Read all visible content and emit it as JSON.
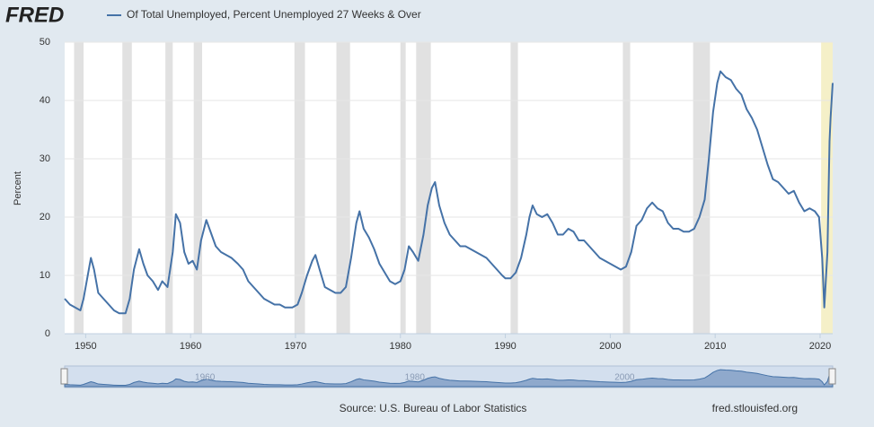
{
  "chart_data": {
    "type": "line",
    "logo": "FRED",
    "ylabel": "Percent",
    "source": "Source: U.S. Bureau of Labor Statistics",
    "credit": "fred.stlouisfed.org",
    "xlim": [
      1948,
      2021.2
    ],
    "ylim": [
      0,
      50
    ],
    "xticks": [
      1950,
      1960,
      1970,
      1980,
      1990,
      2000,
      2010,
      2020
    ],
    "yticks": [
      0,
      10,
      20,
      30,
      40,
      50
    ],
    "navigator_xticks": [
      1960,
      1980,
      2000
    ],
    "grid": true,
    "recessions": [
      {
        "start": 1948.9,
        "end": 1949.8,
        "color": "#e1e1e1"
      },
      {
        "start": 1953.5,
        "end": 1954.4,
        "color": "#e1e1e1"
      },
      {
        "start": 1957.6,
        "end": 1958.3,
        "color": "#e1e1e1"
      },
      {
        "start": 1960.3,
        "end": 1961.1,
        "color": "#e1e1e1"
      },
      {
        "start": 1969.9,
        "end": 1970.9,
        "color": "#e1e1e1"
      },
      {
        "start": 1973.9,
        "end": 1975.2,
        "color": "#e1e1e1"
      },
      {
        "start": 1980.0,
        "end": 1980.5,
        "color": "#e1e1e1"
      },
      {
        "start": 1981.5,
        "end": 1982.9,
        "color": "#e1e1e1"
      },
      {
        "start": 1990.5,
        "end": 1991.2,
        "color": "#e1e1e1"
      },
      {
        "start": 2001.2,
        "end": 2001.9,
        "color": "#e1e1e1"
      },
      {
        "start": 2007.9,
        "end": 2009.5,
        "color": "#e1e1e1"
      },
      {
        "start": 2020.1,
        "end": 2021.2,
        "color": "#f5f0c8"
      }
    ],
    "x": [
      1948.0,
      1948.5,
      1949.0,
      1949.5,
      1949.8,
      1950.3,
      1950.5,
      1950.8,
      1951.2,
      1951.7,
      1952.2,
      1952.7,
      1953.2,
      1953.8,
      1954.2,
      1954.6,
      1955.1,
      1955.5,
      1955.9,
      1956.4,
      1956.9,
      1957.3,
      1957.8,
      1958.3,
      1958.6,
      1959.0,
      1959.4,
      1959.8,
      1960.2,
      1960.6,
      1961.0,
      1961.5,
      1961.9,
      1962.4,
      1962.9,
      1963.4,
      1963.9,
      1964.5,
      1965.0,
      1965.5,
      1966.0,
      1966.5,
      1967.0,
      1967.5,
      1968.0,
      1968.5,
      1969.0,
      1969.7,
      1970.2,
      1970.6,
      1971.1,
      1971.6,
      1971.9,
      1972.3,
      1972.8,
      1973.3,
      1973.8,
      1974.3,
      1974.8,
      1975.3,
      1975.8,
      1976.1,
      1976.5,
      1977.0,
      1977.5,
      1978.0,
      1978.5,
      1979.0,
      1979.5,
      1980.0,
      1980.4,
      1980.8,
      1981.2,
      1981.7,
      1982.2,
      1982.6,
      1983.0,
      1983.3,
      1983.7,
      1984.2,
      1984.7,
      1985.2,
      1985.7,
      1986.2,
      1986.7,
      1987.2,
      1987.7,
      1988.2,
      1988.7,
      1989.2,
      1989.7,
      1990.0,
      1990.5,
      1991.0,
      1991.5,
      1992.0,
      1992.3,
      1992.6,
      1993.0,
      1993.5,
      1994.0,
      1994.5,
      1995.0,
      1995.5,
      1996.0,
      1996.5,
      1997.0,
      1997.5,
      1998.0,
      1998.5,
      1999.0,
      1999.5,
      2000.0,
      2000.5,
      2001.0,
      2001.5,
      2002.0,
      2002.5,
      2003.0,
      2003.5,
      2004.0,
      2004.5,
      2005.0,
      2005.5,
      2006.0,
      2006.5,
      2007.0,
      2007.5,
      2008.0,
      2008.5,
      2009.0,
      2009.4,
      2009.8,
      2010.2,
      2010.5,
      2011.0,
      2011.5,
      2012.0,
      2012.5,
      2013.0,
      2013.5,
      2014.0,
      2014.5,
      2015.0,
      2015.5,
      2016.0,
      2016.5,
      2017.0,
      2017.5,
      2018.0,
      2018.5,
      2019.0,
      2019.5,
      2019.9,
      2020.2,
      2020.4,
      2020.7,
      2020.9,
      2021.0,
      2021.2
    ],
    "series": [
      {
        "name": "Of Total Unemployed, Percent Unemployed 27 Weeks & Over",
        "color": "#4572a7",
        "values": [
          6,
          5,
          4.5,
          4,
          6,
          11,
          13,
          11,
          7,
          6,
          5,
          4,
          3.5,
          3.5,
          6,
          11,
          14.5,
          12,
          10,
          9,
          7.5,
          9,
          8,
          14,
          20.5,
          19,
          14,
          12,
          12.5,
          11,
          16,
          19.5,
          17.5,
          15,
          14,
          13.5,
          13,
          12,
          11,
          9,
          8,
          7,
          6,
          5.5,
          5,
          5,
          4.5,
          4.5,
          5,
          7,
          10,
          12.5,
          13.5,
          11,
          8,
          7.5,
          7,
          7,
          8,
          13,
          19,
          21,
          18,
          16.5,
          14.5,
          12,
          10.5,
          9,
          8.5,
          9,
          11,
          15,
          14,
          12.5,
          17,
          22,
          25,
          26,
          22,
          19,
          17,
          16,
          15,
          15,
          14.5,
          14,
          13.5,
          13,
          12,
          11,
          10,
          9.5,
          9.5,
          10.5,
          13,
          17,
          20,
          22,
          20.5,
          20,
          20.5,
          19,
          17,
          17,
          18,
          17.5,
          16,
          16,
          15,
          14,
          13,
          12.5,
          12,
          11.5,
          11,
          11.5,
          14,
          18.5,
          19.5,
          21.5,
          22.5,
          21.5,
          21,
          19,
          18,
          18,
          17.5,
          17.5,
          18,
          20,
          23,
          30,
          38,
          43,
          45,
          44,
          43.5,
          42,
          41,
          38.5,
          37,
          35,
          32,
          29,
          26.5,
          26,
          25,
          24,
          24.5,
          22.5,
          21,
          21.5,
          21,
          20,
          13,
          4.5,
          14,
          33,
          37,
          43
        ]
      }
    ]
  }
}
